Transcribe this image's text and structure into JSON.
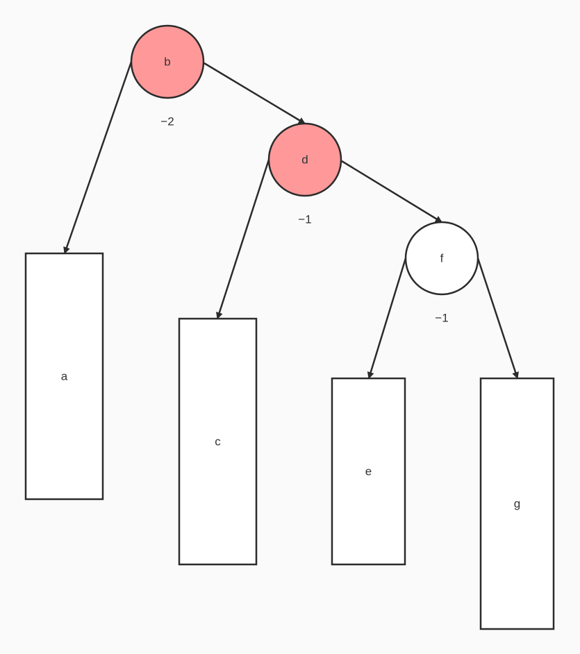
{
  "diagram": {
    "colors": {
      "background": "#fafafa",
      "highlight_fill": "#ff9999",
      "plain_fill": "#ffffff",
      "stroke": "#2b2b2b",
      "text": "#333333"
    },
    "nodes": [
      {
        "id": "b",
        "label": "b",
        "shape": "circle",
        "highlighted": true,
        "balance": "−2"
      },
      {
        "id": "d",
        "label": "d",
        "shape": "circle",
        "highlighted": true,
        "balance": "−1"
      },
      {
        "id": "f",
        "label": "f",
        "shape": "circle",
        "highlighted": false,
        "balance": "−1"
      },
      {
        "id": "a",
        "label": "a",
        "shape": "rectangle",
        "highlighted": false
      },
      {
        "id": "c",
        "label": "c",
        "shape": "rectangle",
        "highlighted": false
      },
      {
        "id": "e",
        "label": "e",
        "shape": "rectangle",
        "highlighted": false
      },
      {
        "id": "g",
        "label": "g",
        "shape": "rectangle",
        "highlighted": false
      }
    ],
    "edges": [
      {
        "from": "b",
        "to": "a"
      },
      {
        "from": "b",
        "to": "d"
      },
      {
        "from": "d",
        "to": "c"
      },
      {
        "from": "d",
        "to": "f"
      },
      {
        "from": "f",
        "to": "e"
      },
      {
        "from": "f",
        "to": "g"
      }
    ]
  }
}
